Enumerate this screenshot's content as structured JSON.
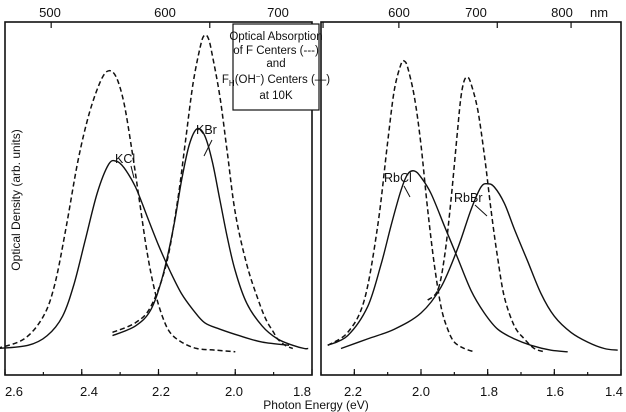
{
  "chart_data": {
    "type": "line",
    "title_lines": [
      "Optical Absorption",
      "of F Centers (---)",
      "and",
      "F",
      "H",
      "(OH",
      "−",
      ") Centers (—)",
      "at 10K"
    ],
    "xlabel": "Photon Energy (eV)",
    "ylabel": "Optical Density  (arb. units)",
    "top_axis_unit": "nm",
    "panels": [
      {
        "name": "left",
        "xlim": [
          2.6,
          1.8
        ],
        "ylim": [
          0,
          1.0
        ],
        "bottom_ticks": [
          "2.6",
          "2.4",
          "2.2",
          "2.0",
          "1.8"
        ],
        "top_ticks": [
          "500",
          "600",
          "700"
        ],
        "series": [
          {
            "name": "KCl",
            "style": "solid",
            "label": "KCl",
            "x": [
              2.62,
              2.54,
              2.49,
              2.45,
              2.42,
              2.39,
              2.36,
              2.33,
              2.31,
              2.29,
              2.26,
              2.23,
              2.2,
              2.17,
              2.14,
              2.11,
              2.08,
              2.04,
              1.99,
              1.93,
              1.86
            ],
            "y": [
              0.02,
              0.03,
              0.06,
              0.12,
              0.22,
              0.36,
              0.5,
              0.59,
              0.6,
              0.58,
              0.52,
              0.43,
              0.34,
              0.26,
              0.19,
              0.14,
              0.1,
              0.08,
              0.06,
              0.04,
              0.03
            ]
          },
          {
            "name": "KCl F center",
            "style": "dashed",
            "x": [
              2.62,
              2.55,
              2.5,
              2.47,
              2.44,
              2.41,
              2.38,
              2.35,
              2.33,
              2.31,
              2.29,
              2.27,
              2.25,
              2.23,
              2.21,
              2.19,
              2.17,
              2.14,
              2.1,
              2.05,
              2.0
            ],
            "y": [
              0.02,
              0.05,
              0.12,
              0.22,
              0.4,
              0.6,
              0.75,
              0.85,
              0.88,
              0.86,
              0.78,
              0.64,
              0.48,
              0.32,
              0.2,
              0.12,
              0.07,
              0.04,
              0.02,
              0.015,
              0.01
            ]
          },
          {
            "name": "KBr",
            "style": "solid",
            "label": "KBr",
            "x": [
              2.32,
              2.26,
              2.22,
              2.19,
              2.16,
              2.14,
              2.12,
              2.1,
              2.08,
              2.06,
              2.04,
              2.02,
              2.0,
              1.97,
              1.93,
              1.89,
              1.85,
              1.82,
              1.81
            ],
            "y": [
              0.06,
              0.09,
              0.14,
              0.24,
              0.4,
              0.54,
              0.65,
              0.7,
              0.68,
              0.6,
              0.48,
              0.36,
              0.26,
              0.16,
              0.09,
              0.05,
              0.03,
              0.02,
              0.02
            ]
          },
          {
            "name": "KBr F center",
            "style": "dashed",
            "x": [
              2.32,
              2.26,
              2.22,
              2.18,
              2.15,
              2.13,
              2.11,
              2.09,
              2.08,
              2.07,
              2.06,
              2.04,
              2.02,
              2.0,
              1.97,
              1.94,
              1.92,
              1.9,
              1.89,
              1.87,
              1.85
            ],
            "y": [
              0.07,
              0.1,
              0.15,
              0.28,
              0.48,
              0.66,
              0.84,
              0.96,
              0.99,
              0.98,
              0.93,
              0.8,
              0.62,
              0.44,
              0.28,
              0.17,
              0.11,
              0.07,
              0.05,
              0.03,
              0.02
            ]
          }
        ]
      },
      {
        "name": "right",
        "xlim": [
          2.3,
          1.4
        ],
        "ylim": [
          0,
          1.0
        ],
        "bottom_ticks": [
          "2.2",
          "2.0",
          "1.8",
          "1.6",
          "1.4"
        ],
        "top_ticks": [
          "600",
          "700",
          "800"
        ],
        "series": [
          {
            "name": "RbCl",
            "style": "solid",
            "label": "RbCl",
            "x": [
              2.28,
              2.22,
              2.16,
              2.12,
              2.09,
              2.06,
              2.04,
              2.02,
              2.0,
              1.97,
              1.93,
              1.89,
              1.85,
              1.81,
              1.77,
              1.72,
              1.67,
              1.61,
              1.56
            ],
            "y": [
              0.03,
              0.06,
              0.15,
              0.28,
              0.4,
              0.51,
              0.56,
              0.57,
              0.55,
              0.5,
              0.4,
              0.3,
              0.2,
              0.13,
              0.08,
              0.05,
              0.03,
              0.015,
              0.01
            ]
          },
          {
            "name": "RbCl F center",
            "style": "dashed",
            "x": [
              2.28,
              2.22,
              2.17,
              2.13,
              2.1,
              2.08,
              2.06,
              2.05,
              2.04,
              2.02,
              2.0,
              1.98,
              1.96,
              1.94,
              1.92,
              1.9,
              1.87,
              1.84
            ],
            "y": [
              0.03,
              0.07,
              0.17,
              0.4,
              0.66,
              0.82,
              0.9,
              0.91,
              0.89,
              0.8,
              0.65,
              0.45,
              0.28,
              0.15,
              0.08,
              0.04,
              0.02,
              0.01
            ]
          },
          {
            "name": "RbBr",
            "style": "solid",
            "label": "RbBr",
            "x": [
              2.24,
              2.16,
              2.08,
              2.0,
              1.94,
              1.89,
              1.85,
              1.82,
              1.8,
              1.78,
              1.75,
              1.72,
              1.68,
              1.64,
              1.6,
              1.55,
              1.5,
              1.45,
              1.41
            ],
            "y": [
              0.02,
              0.05,
              0.08,
              0.13,
              0.21,
              0.33,
              0.45,
              0.52,
              0.53,
              0.52,
              0.47,
              0.39,
              0.29,
              0.19,
              0.12,
              0.07,
              0.04,
              0.02,
              0.015
            ]
          },
          {
            "name": "RbBr F center",
            "style": "dashed",
            "x": [
              1.98,
              1.95,
              1.93,
              1.91,
              1.89,
              1.88,
              1.87,
              1.86,
              1.85,
              1.83,
              1.81,
              1.79,
              1.77,
              1.75,
              1.72,
              1.69,
              1.66,
              1.63
            ],
            "y": [
              0.17,
              0.2,
              0.3,
              0.48,
              0.7,
              0.8,
              0.85,
              0.86,
              0.84,
              0.76,
              0.62,
              0.45,
              0.3,
              0.18,
              0.09,
              0.05,
              0.02,
              0.01
            ]
          }
        ]
      }
    ]
  }
}
